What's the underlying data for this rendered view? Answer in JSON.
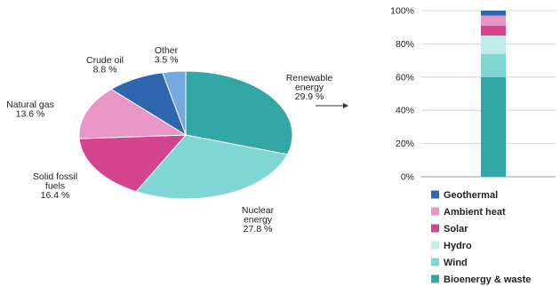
{
  "colors": {
    "slice_fill": "#ffffff",
    "arrow": "#333333",
    "axis": "#999999",
    "grid": "#cccccc",
    "background": "#ffffff"
  },
  "chart_data": [
    {
      "type": "pie",
      "title": "",
      "slices": [
        {
          "label_lines": [
            "Renewable",
            "energy"
          ],
          "value_text": "29.9 %",
          "value": 29.9,
          "color": "#33a6a6"
        },
        {
          "label_lines": [
            "Nuclear",
            "energy"
          ],
          "value_text": "27.8 %",
          "value": 27.8,
          "color": "#7fd6d4"
        },
        {
          "label_lines": [
            "Solid fossil",
            "fuels"
          ],
          "value_text": "16.4 %",
          "value": 16.4,
          "color": "#d4448e"
        },
        {
          "label_lines": [
            "Natural gas"
          ],
          "value_text": "13.6 %",
          "value": 13.6,
          "color": "#e796c6"
        },
        {
          "label_lines": [
            "Crude  oil"
          ],
          "value_text": "8.8 %",
          "value": 8.8,
          "color": "#2f66b0"
        },
        {
          "label_lines": [
            "Other"
          ],
          "value_text": "3.5 %",
          "value": 3.5,
          "color": "#74a8e0"
        }
      ]
    },
    {
      "type": "bar",
      "stacked": true,
      "title": "",
      "ylim": [
        0,
        100
      ],
      "ytick_labels": [
        "0%",
        "20%",
        "40%",
        "60%",
        "80%",
        "100%"
      ],
      "ytick_values": [
        0,
        20,
        40,
        60,
        80,
        100
      ],
      "grid": true,
      "legend_position": "bottom",
      "series": [
        {
          "name": "Bioenergy & waste",
          "value": 60,
          "color": "#33a6a6"
        },
        {
          "name": "Wind",
          "value": 14,
          "color": "#7fd6d4"
        },
        {
          "name": "Hydro",
          "value": 11,
          "color": "#bfeceb"
        },
        {
          "name": "Solar",
          "value": 6,
          "color": "#d4448e"
        },
        {
          "name": "Ambient heat",
          "value": 6,
          "color": "#e796c6"
        },
        {
          "name": "Geothermal",
          "value": 3,
          "color": "#2f66b0"
        }
      ],
      "legend_order": [
        "Geothermal",
        "Ambient heat",
        "Solar",
        "Hydro",
        "Wind",
        "Bioenergy & waste"
      ]
    }
  ]
}
